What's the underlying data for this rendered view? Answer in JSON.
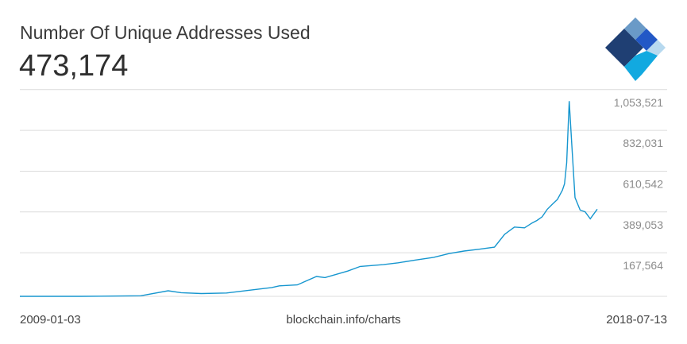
{
  "header": {
    "title": "Number Of Unique Addresses Used",
    "current_value": "473,174"
  },
  "footer": {
    "start_date": "2009-01-03",
    "source": "blockchain.info/charts",
    "end_date": "2018-07-13"
  },
  "logo": {
    "icon": "blockchain-diamond-logo-icon",
    "colors": [
      "#1f3f73",
      "#6a9ac7",
      "#2258c6",
      "#12a9e0",
      "#b7d9ef"
    ]
  },
  "colors": {
    "line": "#1696cf",
    "grid": "#dcdcdc",
    "tick_text": "#8c8c8c"
  },
  "chart_data": {
    "type": "line",
    "title": "Number Of Unique Addresses Used",
    "xlabel": "",
    "ylabel": "",
    "x_range": [
      "2009-01-03",
      "2018-07-13"
    ],
    "ylim": [
      0,
      1100000
    ],
    "yticks": [
      {
        "value": 167564,
        "label": "167,564"
      },
      {
        "value": 389053,
        "label": "389,053"
      },
      {
        "value": 610542,
        "label": "610,542"
      },
      {
        "value": 832031,
        "label": "832,031"
      },
      {
        "value": 1053521,
        "label": "1,053,521"
      }
    ],
    "grid": true,
    "series": [
      {
        "x": [
          "2009-01-03",
          "2010-01-01",
          "2010-07-01",
          "2011-01-01",
          "2011-06-15",
          "2011-09-01",
          "2012-01-01",
          "2012-06-01",
          "2012-12-01",
          "2013-03-01",
          "2013-04-15",
          "2013-08-01",
          "2013-11-25",
          "2014-01-15",
          "2014-06-01",
          "2014-08-15",
          "2015-01-01",
          "2015-04-01",
          "2015-07-15",
          "2015-11-01",
          "2016-02-01",
          "2016-05-01",
          "2016-08-01",
          "2016-11-01",
          "2017-01-01",
          "2017-03-01",
          "2017-05-01",
          "2017-06-15",
          "2017-07-15",
          "2017-08-15",
          "2017-09-15",
          "2017-10-15",
          "2017-11-15",
          "2017-12-15",
          "2017-12-28",
          "2018-01-10",
          "2018-01-25",
          "2018-02-10",
          "2018-03-01",
          "2018-04-01",
          "2018-05-01",
          "2018-06-01",
          "2018-07-13"
        ],
        "y": [
          50,
          100,
          1500,
          3000,
          30000,
          20000,
          15000,
          18000,
          38000,
          48000,
          57000,
          62000,
          108000,
          102000,
          137000,
          162000,
          172000,
          182000,
          197000,
          212000,
          232000,
          246000,
          256000,
          267000,
          337000,
          376000,
          372000,
          398000,
          412000,
          432000,
          473000,
          500000,
          526000,
          576000,
          611000,
          725000,
          1060000,
          820000,
          536000,
          468000,
          459000,
          421000,
          473174
        ]
      }
    ]
  }
}
